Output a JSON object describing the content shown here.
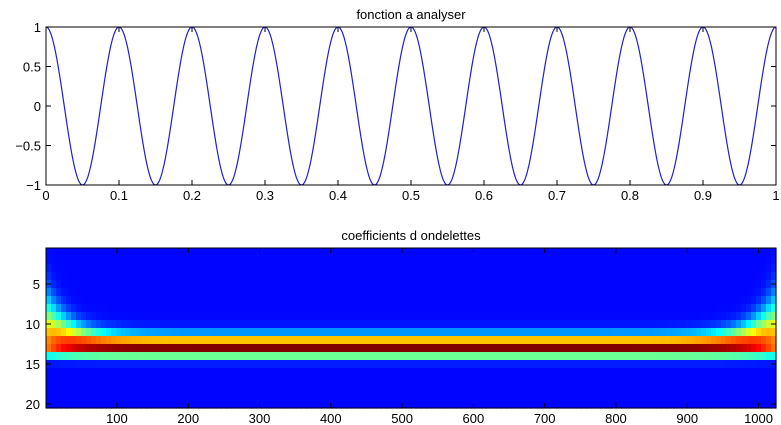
{
  "chart_data": [
    {
      "type": "line",
      "title": "fonction a analyser",
      "xlabel": "",
      "ylabel": "",
      "xlim": [
        0,
        1
      ],
      "ylim": [
        -1,
        1
      ],
      "xticks": [
        "0",
        "0.1",
        "0.2",
        "0.3",
        "0.4",
        "0.5",
        "0.6",
        "0.7",
        "0.8",
        "0.9",
        "1"
      ],
      "yticks": [
        "1",
        "0.5",
        "0",
        "−0.5",
        "−1"
      ],
      "grid": false,
      "series": [
        {
          "function": "cos(2*pi*10*x)",
          "frequency": 10,
          "amplitude": 1,
          "color": "#1f1fd6",
          "x": [
            0,
            0.05,
            0.1,
            0.15,
            0.2,
            0.25,
            0.3,
            0.35,
            0.4,
            0.45,
            0.5,
            0.55,
            0.6,
            0.65,
            0.7,
            0.75,
            0.8,
            0.85,
            0.9,
            0.95,
            1
          ],
          "values": [
            1,
            -1,
            1,
            -1,
            1,
            -1,
            1,
            -1,
            1,
            -1,
            1,
            -1,
            1,
            -1,
            1,
            -1,
            1,
            -1,
            1,
            -1,
            1
          ]
        }
      ]
    },
    {
      "type": "heatmap",
      "title": "coefficients d ondelettes",
      "xlabel": "",
      "ylabel": "",
      "xlim": [
        1,
        1024
      ],
      "ylim": [
        20,
        1
      ],
      "xticks": [
        "100",
        "200",
        "300",
        "400",
        "500",
        "600",
        "700",
        "800",
        "900",
        "1000"
      ],
      "yticks": [
        "5",
        "10",
        "15",
        "20"
      ],
      "colormap": "jet",
      "rows": 20,
      "columns": 1024,
      "peak_scale": 13,
      "edge_spread_scales": [
        9,
        14
      ]
    }
  ]
}
